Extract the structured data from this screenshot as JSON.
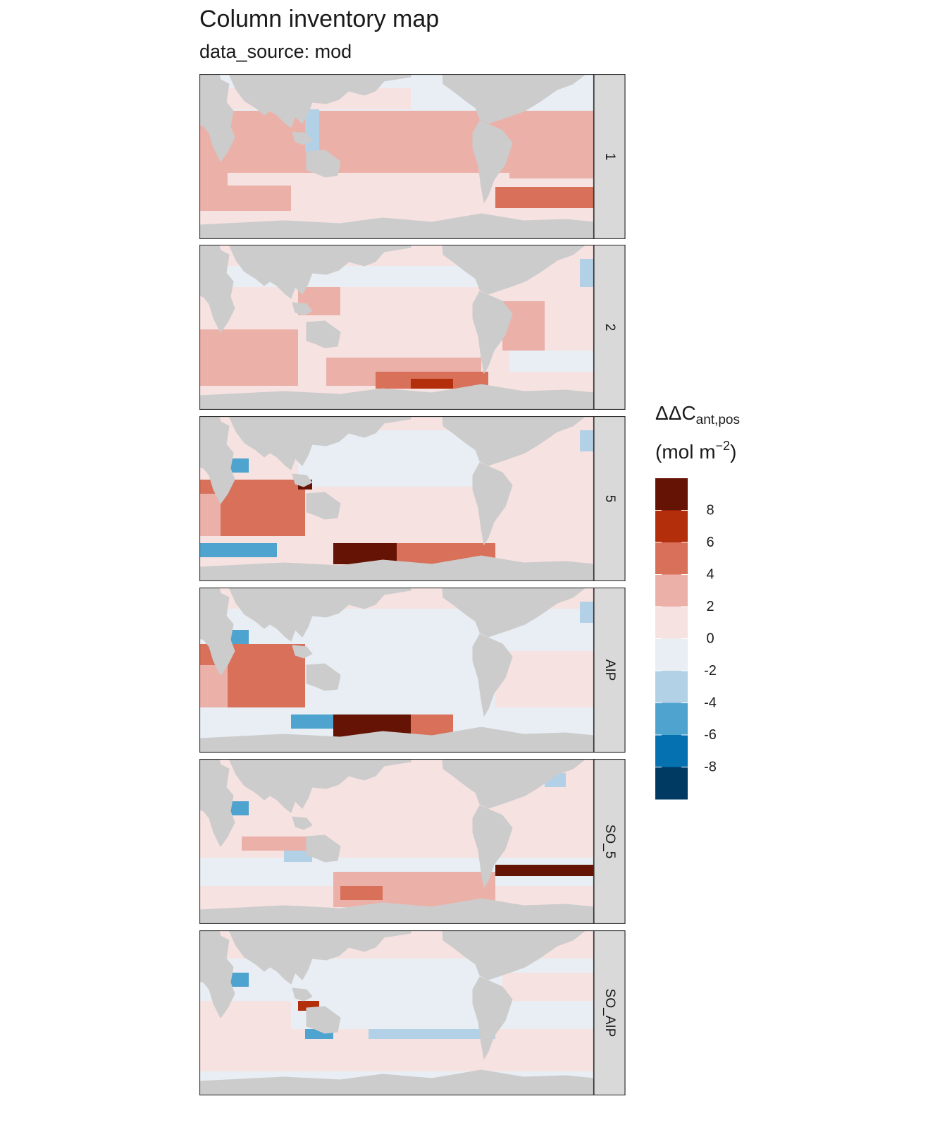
{
  "header": {
    "title": "Column inventory map",
    "subtitle": "data_source: mod"
  },
  "legend": {
    "title_main": "ΔΔC",
    "title_sub": "ant,pos",
    "unit_prefix": "(mol m",
    "unit_sup": "−2",
    "unit_suffix": ")",
    "colors": [
      "#003a63",
      "#0571b0",
      "#4fa3cf",
      "#b2d0e6",
      "#e8eef4",
      "#f6e2e1",
      "#ebb1a9",
      "#d8705a",
      "#b32e0a",
      "#651304"
    ],
    "tick_labels": [
      "-8",
      "-6",
      "-4",
      "-2",
      "0",
      "2",
      "4",
      "6",
      "8"
    ]
  },
  "colors": {
    "land": "#cccccc",
    "strip_bg": "#d9d9d9",
    "frame": "#333333"
  },
  "panels": [
    {
      "label": "1",
      "base": "#ebb1a9"
    },
    {
      "label": "2",
      "base": "#f6e2e1"
    },
    {
      "label": "5",
      "base": "#f6e2e1"
    },
    {
      "label": "AIP",
      "base": "#e8eef4"
    },
    {
      "label": "SO_5",
      "base": "#f6e2e1"
    },
    {
      "label": "SO_AIP",
      "base": "#e8eef4"
    }
  ]
}
